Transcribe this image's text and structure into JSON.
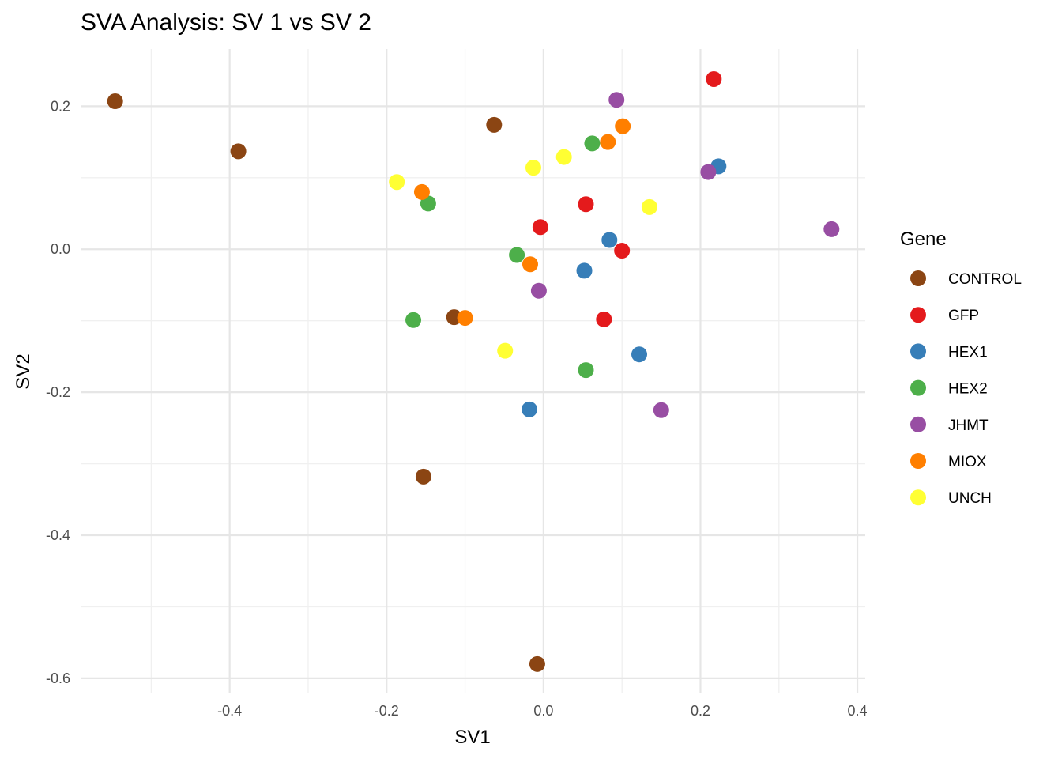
{
  "chart_data": {
    "type": "scatter",
    "title": "SVA Analysis: SV 1  vs SV 2",
    "xlabel": "SV1",
    "ylabel": "SV2",
    "xlim": [
      -0.59,
      0.41
    ],
    "ylim": [
      -0.62,
      0.28
    ],
    "x_ticks": [
      -0.4,
      -0.2,
      0.0,
      0.2,
      0.4
    ],
    "x_tick_labels": [
      "-0.4",
      "-0.2",
      "0.0",
      "0.2",
      "0.4"
    ],
    "y_ticks": [
      0.2,
      0.0,
      -0.2,
      -0.4,
      -0.6
    ],
    "y_tick_labels": [
      "0.2",
      "0.0",
      "-0.2",
      "-0.4",
      "-0.6"
    ],
    "grid": true,
    "legend": {
      "title": "Gene",
      "position": "right"
    },
    "series": [
      {
        "name": "CONTROL",
        "color": "#8B4513",
        "points": [
          [
            -0.546,
            0.207
          ],
          [
            -0.389,
            0.137
          ],
          [
            -0.063,
            0.174
          ],
          [
            -0.114,
            -0.095
          ],
          [
            -0.153,
            -0.318
          ],
          [
            -0.008,
            -0.58
          ]
        ]
      },
      {
        "name": "GFP",
        "color": "#E41A1C",
        "points": [
          [
            0.217,
            0.238
          ],
          [
            0.054,
            0.063
          ],
          [
            -0.004,
            0.031
          ],
          [
            0.1,
            -0.002
          ],
          [
            0.077,
            -0.098
          ]
        ]
      },
      {
        "name": "HEX1",
        "color": "#377EB8",
        "points": [
          [
            0.223,
            0.116
          ],
          [
            0.084,
            0.013
          ],
          [
            0.052,
            -0.03
          ],
          [
            0.122,
            -0.147
          ],
          [
            -0.018,
            -0.224
          ]
        ]
      },
      {
        "name": "HEX2",
        "color": "#4DAF4A",
        "points": [
          [
            0.062,
            0.148
          ],
          [
            -0.147,
            0.064
          ],
          [
            -0.034,
            -0.008
          ],
          [
            -0.166,
            -0.099
          ],
          [
            0.054,
            -0.169
          ]
        ]
      },
      {
        "name": "JHMT",
        "color": "#984EA3",
        "points": [
          [
            0.093,
            0.209
          ],
          [
            0.21,
            0.108
          ],
          [
            0.367,
            0.028
          ],
          [
            -0.006,
            -0.058
          ],
          [
            0.15,
            -0.225
          ]
        ]
      },
      {
        "name": "MIOX",
        "color": "#FF7F00",
        "points": [
          [
            0.101,
            0.172
          ],
          [
            0.082,
            0.15
          ],
          [
            -0.155,
            0.08
          ],
          [
            -0.017,
            -0.021
          ],
          [
            -0.1,
            -0.096
          ]
        ]
      },
      {
        "name": "UNCH",
        "color": "#FFFF33",
        "points": [
          [
            0.026,
            0.129
          ],
          [
            -0.013,
            0.114
          ],
          [
            -0.187,
            0.094
          ],
          [
            0.135,
            0.059
          ],
          [
            -0.049,
            -0.142
          ]
        ]
      }
    ]
  }
}
